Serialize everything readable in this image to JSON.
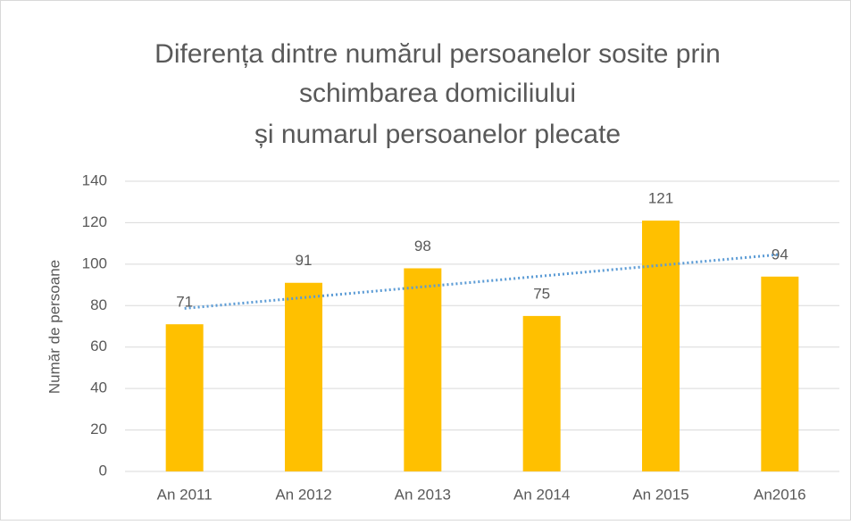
{
  "chart_data": {
    "type": "bar",
    "title": [
      "Diferența dintre numărul persoanelor sosite prin",
      "schimbarea domiciliului",
      "și numarul persoanelor plecate"
    ],
    "y_label": "Număr de persoane",
    "categories": [
      "An 2011",
      "An 2012",
      "An 2013",
      "An 2014",
      "An 2015",
      "An2016"
    ],
    "values": [
      71,
      91,
      98,
      75,
      121,
      94
    ],
    "color": "#ffc000",
    "ylim": [
      0,
      140
    ],
    "yticks": [
      0,
      20,
      40,
      60,
      80,
      100,
      120,
      140
    ],
    "grid": true,
    "trendline": {
      "type": "linear",
      "color": "#5b9bd5"
    }
  }
}
